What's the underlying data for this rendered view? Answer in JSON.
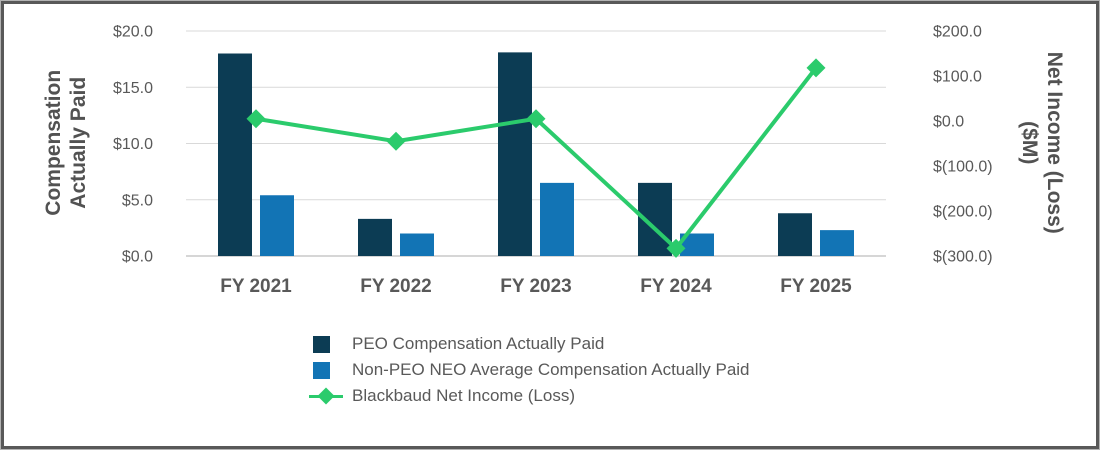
{
  "chart_data": {
    "type": "bar",
    "subtype": "bar-line-combo-dual-axis",
    "categories": [
      "FY 2021",
      "FY 2022",
      "FY 2023",
      "FY 2024",
      "FY 2025"
    ],
    "series": [
      {
        "name": "PEO Compensation Actually Paid",
        "type": "bar",
        "axis": "left",
        "color": "#0c3c54",
        "values": [
          18.0,
          3.3,
          18.1,
          6.5,
          3.8
        ]
      },
      {
        "name": "Non-PEO NEO Average Compensation Actually Paid",
        "type": "bar",
        "axis": "left",
        "color": "#1274b5",
        "values": [
          5.4,
          2.0,
          6.5,
          2.0,
          2.3
        ]
      },
      {
        "name": "Blackbaud Net Income (Loss)",
        "type": "line",
        "axis": "right",
        "marker": "diamond",
        "color": "#2bcb6c",
        "values": [
          5,
          -45,
          5,
          -283,
          118
        ]
      }
    ],
    "left_axis": {
      "title": "Compensation\nActually Paid",
      "ticks": [
        "$20.0",
        "$15.0",
        "$10.0",
        "$5.0",
        "$0.0"
      ],
      "tick_values": [
        20,
        15,
        10,
        5,
        0
      ],
      "min": 0,
      "max": 20
    },
    "right_axis": {
      "title": "Net Income (Loss)\n($M)",
      "ticks": [
        "$200.0",
        "$100.0",
        "$0.0",
        "$(100.0)",
        "$(200.0)",
        "$(300.0)"
      ],
      "tick_values": [
        200,
        100,
        0,
        -100,
        -200,
        -300
      ],
      "min": -300,
      "max": 200
    },
    "grid": true,
    "gridline_color": "#d9d9d9",
    "legend_position": "bottom",
    "text_color": "#595959"
  }
}
